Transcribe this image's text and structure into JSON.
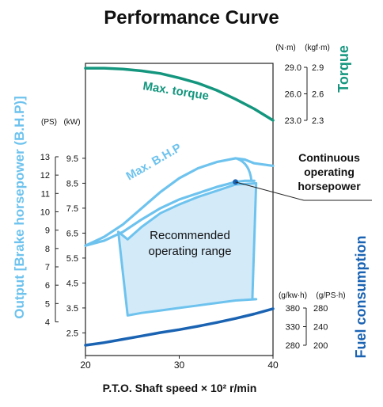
{
  "colors": {
    "teal": "#14967e",
    "light_blue": "#6ec3ee",
    "fill_blue": "#d3eaf9",
    "dark_blue": "#1a63b3",
    "axis": "#222222",
    "text": "#111111"
  },
  "chart_data": {
    "type": "line",
    "title": "Performance Curve",
    "xlabel": "P.T.O. Shaft speed × 10² r/min",
    "x_ticks": [
      "20",
      "30",
      "40"
    ],
    "xlim": [
      20,
      40
    ],
    "left_axis_title": "Output [Brake horsepower (B.H.P)]",
    "left_axis_ps": {
      "unit": "(PS)",
      "ticks": [
        "13",
        "12",
        "11",
        "10",
        "9",
        "8",
        "7",
        "6",
        "5",
        "4"
      ],
      "values": [
        13,
        12,
        11,
        10,
        9,
        8,
        7,
        6,
        5,
        4
      ]
    },
    "left_axis_kw": {
      "unit": "(kW)",
      "ticks": [
        "9.5",
        "8.5",
        "7.5",
        "6.5",
        "5.5",
        "4.5",
        "3.5",
        "2.5"
      ],
      "values": [
        9.5,
        8.5,
        7.5,
        6.5,
        5.5,
        4.5,
        3.5,
        2.5
      ]
    },
    "torque_axis": {
      "title": "Torque",
      "unit_nm": "(N·m)",
      "unit_kgfm": "(kgf·m)",
      "ticks_nm": [
        "29.0",
        "26.0",
        "23.0"
      ],
      "ticks_kgfm": [
        "2.9",
        "2.6",
        "2.3"
      ],
      "values_nm": [
        29.0,
        26.0,
        23.0
      ]
    },
    "fuel_axis": {
      "title": "Fuel consumption",
      "unit_kwh": "(g/kw·h)",
      "unit_psh": "(g/PS·h)",
      "ticks_kwh": [
        "380",
        "330",
        "280"
      ],
      "ticks_psh": [
        "280",
        "240",
        "200"
      ],
      "values_kwh": [
        380,
        330,
        280
      ]
    },
    "series": [
      {
        "name": "Max. torque",
        "axis": "torque_nm",
        "x": [
          20,
          22,
          24,
          26,
          28,
          30,
          32,
          34,
          36,
          38,
          40
        ],
        "y": [
          28.9,
          28.9,
          28.8,
          28.6,
          28.3,
          27.8,
          27.2,
          26.4,
          25.4,
          24.3,
          23.0
        ]
      },
      {
        "name": "Max. B.H.P",
        "axis": "kw",
        "x": [
          20,
          22,
          24,
          26,
          28,
          30,
          32,
          34,
          36,
          37,
          38,
          40
        ],
        "y": [
          6.0,
          6.35,
          6.85,
          7.5,
          8.15,
          8.7,
          9.1,
          9.35,
          9.5,
          9.45,
          9.3,
          9.2
        ]
      },
      {
        "name": "Continuous operating horsepower",
        "axis": "kw",
        "x": [
          20,
          22,
          24,
          26,
          28,
          30,
          32,
          34,
          36,
          37,
          38
        ],
        "y": [
          6.0,
          6.2,
          6.55,
          7.05,
          7.5,
          7.85,
          8.1,
          8.35,
          8.55,
          8.6,
          8.6
        ]
      },
      {
        "name": "Fuel consumption",
        "axis": "fuel_g_kwh",
        "x": [
          20,
          22,
          24,
          26,
          28,
          30,
          32,
          34,
          36,
          38,
          40
        ],
        "y": [
          280,
          287,
          296,
          305,
          314,
          322,
          331,
          341,
          352,
          364,
          378
        ]
      }
    ],
    "recommended_range": {
      "label": "Recommended operating range",
      "x": [
        23.5,
        24.5,
        26,
        28,
        30,
        32,
        34,
        36,
        38.2,
        37.8,
        38.2,
        36,
        34,
        32,
        30,
        28,
        26,
        24.5
      ],
      "y": [
        6.55,
        6.25,
        6.75,
        7.3,
        7.65,
        7.95,
        8.2,
        8.45,
        8.5,
        3.85,
        3.85,
        3.8,
        3.7,
        3.6,
        3.5,
        3.4,
        3.3,
        3.2
      ]
    },
    "annotations": {
      "max_torque": "Max. torque",
      "max_bhp": "Max. B.H.P",
      "continuous": [
        "Continuous",
        "operating",
        "horsepower"
      ],
      "recommended": [
        "Recommended",
        "operating range"
      ]
    },
    "grid": false
  }
}
